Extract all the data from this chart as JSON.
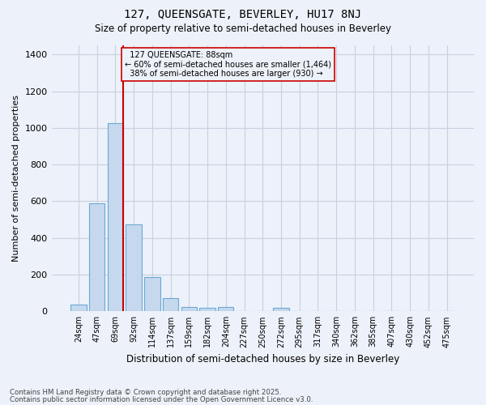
{
  "title": "127, QUEENSGATE, BEVERLEY, HU17 8NJ",
  "subtitle": "Size of property relative to semi-detached houses in Beverley",
  "xlabel": "Distribution of semi-detached houses by size in Beverley",
  "ylabel": "Number of semi-detached properties",
  "categories": [
    "24sqm",
    "47sqm",
    "69sqm",
    "92sqm",
    "114sqm",
    "137sqm",
    "159sqm",
    "182sqm",
    "204sqm",
    "227sqm",
    "250sqm",
    "272sqm",
    "295sqm",
    "317sqm",
    "340sqm",
    "362sqm",
    "385sqm",
    "407sqm",
    "430sqm",
    "452sqm",
    "475sqm"
  ],
  "values": [
    38,
    590,
    1025,
    475,
    185,
    70,
    25,
    18,
    25,
    0,
    0,
    18,
    0,
    0,
    0,
    0,
    0,
    0,
    0,
    0,
    0
  ],
  "bar_color": "#c5d8ee",
  "bar_edge_color": "#6aaad4",
  "vline_bar_index": 2,
  "vline_color": "#cc0000",
  "annotation_box_color": "#cc0000",
  "background_color": "#edf1f9",
  "grid_color": "#c8d0e0",
  "ylim": [
    0,
    1450
  ],
  "yticks": [
    0,
    200,
    400,
    600,
    800,
    1000,
    1200,
    1400
  ],
  "marker_label": "127 QUEENSGATE: 88sqm",
  "smaller_pct": "60% of semi-detached houses are smaller (1,464)",
  "larger_pct": "38% of semi-detached houses are larger (930)",
  "footer_line1": "Contains HM Land Registry data © Crown copyright and database right 2025.",
  "footer_line2": "Contains public sector information licensed under the Open Government Licence v3.0."
}
